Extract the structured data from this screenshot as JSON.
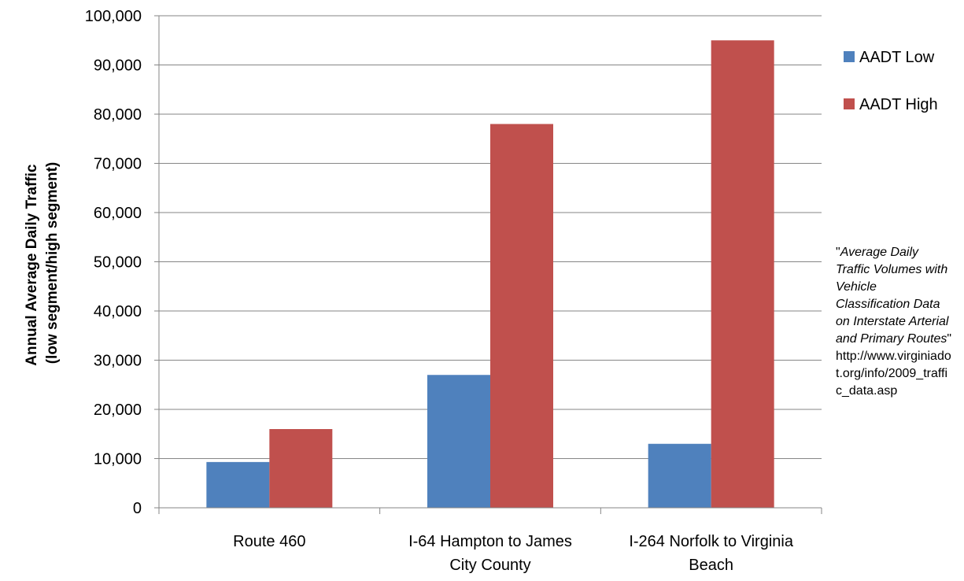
{
  "chart_data": {
    "type": "bar",
    "categories": [
      [
        "Route 460"
      ],
      [
        "I-64 Hampton to James",
        "City County"
      ],
      [
        "I-264 Norfolk to Virginia",
        "Beach"
      ]
    ],
    "series": [
      {
        "name": "AADT Low",
        "color": "#4F81BD",
        "values": [
          9300,
          27000,
          13000
        ]
      },
      {
        "name": "AADT High",
        "color": "#C0504D",
        "values": [
          16000,
          78000,
          95000
        ]
      }
    ],
    "ylabel": [
      "Annual Average Daily Traffic",
      "(low segment/high segment)"
    ],
    "ylim": [
      0,
      100000
    ],
    "yticks": [
      0,
      10000,
      20000,
      30000,
      40000,
      50000,
      60000,
      70000,
      80000,
      90000,
      100000
    ],
    "ytick_labels": [
      "0",
      "10,000",
      "20,000",
      "30,000",
      "40,000",
      "50,000",
      "60,000",
      "70,000",
      "80,000",
      "90,000",
      "100,000"
    ],
    "grid": true,
    "legend_position": "right",
    "annotation": {
      "quote_open": "\"",
      "title": "Average Daily Traffic Volumes  with Vehicle Classification Data on Interstate Arterial and Primary Routes",
      "quote_close": "\"",
      "url": "http://www.virginiadot.org/info/2009_traffic_data.asp"
    }
  }
}
